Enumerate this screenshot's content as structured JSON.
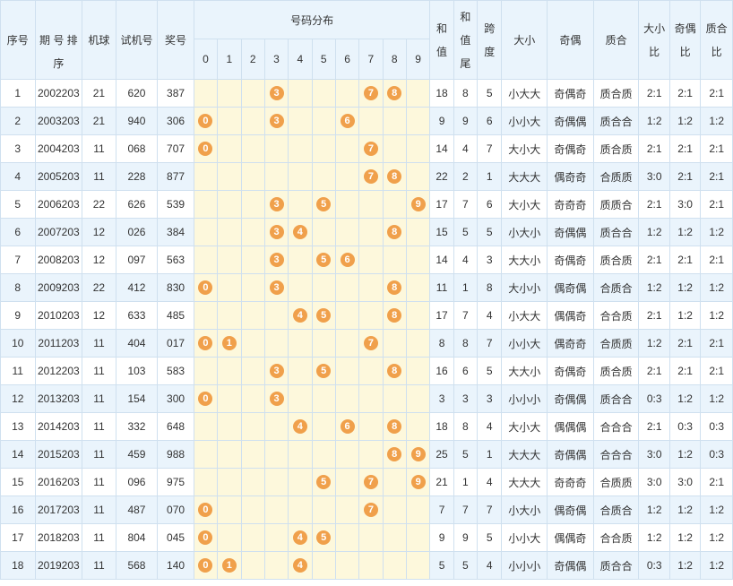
{
  "headers": {
    "seq": "序号",
    "issue_top": "期",
    "issue_bottom": "号",
    "sort": "排序",
    "machine": "机球",
    "test": "试机号",
    "prize": "奖号",
    "distribution": "号码分布",
    "digits": [
      "0",
      "1",
      "2",
      "3",
      "4",
      "5",
      "6",
      "7",
      "8",
      "9"
    ],
    "sum": "和值",
    "sum_tail": "和值尾",
    "span": "跨度",
    "size": "大小",
    "parity": "奇偶",
    "prime": "质合",
    "size_ratio": "大小比",
    "parity_ratio": "奇偶比",
    "prime_ratio": "质合比"
  },
  "rows": [
    {
      "seq": "1",
      "issue": "2002203",
      "machine": "21",
      "test": "620",
      "prize": "387",
      "balls": [
        3,
        7,
        8
      ],
      "sum": "18",
      "tail": "8",
      "span": "5",
      "size": "小大大",
      "parity": "奇偶奇",
      "prime": "质合质",
      "sr": "2:1",
      "pr": "2:1",
      "qr": "2:1"
    },
    {
      "seq": "2",
      "issue": "2003203",
      "machine": "21",
      "test": "940",
      "prize": "306",
      "balls": [
        0,
        3,
        6
      ],
      "sum": "9",
      "tail": "9",
      "span": "6",
      "size": "小小大",
      "parity": "奇偶偶",
      "prime": "质合合",
      "sr": "1:2",
      "pr": "1:2",
      "qr": "1:2"
    },
    {
      "seq": "3",
      "issue": "2004203",
      "machine": "11",
      "test": "068",
      "prize": "707",
      "balls": [
        0,
        7
      ],
      "sum": "14",
      "tail": "4",
      "span": "7",
      "size": "大小大",
      "parity": "奇偶奇",
      "prime": "质合质",
      "sr": "2:1",
      "pr": "2:1",
      "qr": "2:1"
    },
    {
      "seq": "4",
      "issue": "2005203",
      "machine": "11",
      "test": "228",
      "prize": "877",
      "balls": [
        7,
        8
      ],
      "sum": "22",
      "tail": "2",
      "span": "1",
      "size": "大大大",
      "parity": "偶奇奇",
      "prime": "合质质",
      "sr": "3:0",
      "pr": "2:1",
      "qr": "2:1"
    },
    {
      "seq": "5",
      "issue": "2006203",
      "machine": "22",
      "test": "626",
      "prize": "539",
      "balls": [
        3,
        5,
        9
      ],
      "sum": "17",
      "tail": "7",
      "span": "6",
      "size": "大小大",
      "parity": "奇奇奇",
      "prime": "质质合",
      "sr": "2:1",
      "pr": "3:0",
      "qr": "2:1"
    },
    {
      "seq": "6",
      "issue": "2007203",
      "machine": "12",
      "test": "026",
      "prize": "384",
      "balls": [
        3,
        4,
        8
      ],
      "sum": "15",
      "tail": "5",
      "span": "5",
      "size": "小大小",
      "parity": "奇偶偶",
      "prime": "质合合",
      "sr": "1:2",
      "pr": "1:2",
      "qr": "1:2"
    },
    {
      "seq": "7",
      "issue": "2008203",
      "machine": "12",
      "test": "097",
      "prize": "563",
      "balls": [
        3,
        5,
        6
      ],
      "sum": "14",
      "tail": "4",
      "span": "3",
      "size": "大大小",
      "parity": "奇偶奇",
      "prime": "质合质",
      "sr": "2:1",
      "pr": "2:1",
      "qr": "2:1"
    },
    {
      "seq": "8",
      "issue": "2009203",
      "machine": "22",
      "test": "412",
      "prize": "830",
      "balls": [
        0,
        3,
        8
      ],
      "sum": "11",
      "tail": "1",
      "span": "8",
      "size": "大小小",
      "parity": "偶奇偶",
      "prime": "合质合",
      "sr": "1:2",
      "pr": "1:2",
      "qr": "1:2"
    },
    {
      "seq": "9",
      "issue": "2010203",
      "machine": "12",
      "test": "633",
      "prize": "485",
      "balls": [
        4,
        5,
        8
      ],
      "sum": "17",
      "tail": "7",
      "span": "4",
      "size": "小大大",
      "parity": "偶偶奇",
      "prime": "合合质",
      "sr": "2:1",
      "pr": "1:2",
      "qr": "1:2"
    },
    {
      "seq": "10",
      "issue": "2011203",
      "machine": "11",
      "test": "404",
      "prize": "017",
      "balls": [
        0,
        1,
        7
      ],
      "sum": "8",
      "tail": "8",
      "span": "7",
      "size": "小小大",
      "parity": "偶奇奇",
      "prime": "合质质",
      "sr": "1:2",
      "pr": "2:1",
      "qr": "2:1"
    },
    {
      "seq": "11",
      "issue": "2012203",
      "machine": "11",
      "test": "103",
      "prize": "583",
      "balls": [
        3,
        5,
        8
      ],
      "sum": "16",
      "tail": "6",
      "span": "5",
      "size": "大大小",
      "parity": "奇偶奇",
      "prime": "质合质",
      "sr": "2:1",
      "pr": "2:1",
      "qr": "2:1"
    },
    {
      "seq": "12",
      "issue": "2013203",
      "machine": "11",
      "test": "154",
      "prize": "300",
      "balls": [
        0,
        3
      ],
      "sum": "3",
      "tail": "3",
      "span": "3",
      "size": "小小小",
      "parity": "奇偶偶",
      "prime": "质合合",
      "sr": "0:3",
      "pr": "1:2",
      "qr": "1:2"
    },
    {
      "seq": "13",
      "issue": "2014203",
      "machine": "11",
      "test": "332",
      "prize": "648",
      "balls": [
        4,
        6,
        8
      ],
      "sum": "18",
      "tail": "8",
      "span": "4",
      "size": "大小大",
      "parity": "偶偶偶",
      "prime": "合合合",
      "sr": "2:1",
      "pr": "0:3",
      "qr": "0:3"
    },
    {
      "seq": "14",
      "issue": "2015203",
      "machine": "11",
      "test": "459",
      "prize": "988",
      "balls": [
        8,
        9
      ],
      "sum": "25",
      "tail": "5",
      "span": "1",
      "size": "大大大",
      "parity": "奇偶偶",
      "prime": "合合合",
      "sr": "3:0",
      "pr": "1:2",
      "qr": "0:3"
    },
    {
      "seq": "15",
      "issue": "2016203",
      "machine": "11",
      "test": "096",
      "prize": "975",
      "balls": [
        5,
        7,
        9
      ],
      "sum": "21",
      "tail": "1",
      "span": "4",
      "size": "大大大",
      "parity": "奇奇奇",
      "prime": "合质质",
      "sr": "3:0",
      "pr": "3:0",
      "qr": "2:1"
    },
    {
      "seq": "16",
      "issue": "2017203",
      "machine": "11",
      "test": "487",
      "prize": "070",
      "balls": [
        0,
        7
      ],
      "sum": "7",
      "tail": "7",
      "span": "7",
      "size": "小大小",
      "parity": "偶奇偶",
      "prime": "合质合",
      "sr": "1:2",
      "pr": "1:2",
      "qr": "1:2"
    },
    {
      "seq": "17",
      "issue": "2018203",
      "machine": "11",
      "test": "804",
      "prize": "045",
      "balls": [
        0,
        4,
        5
      ],
      "sum": "9",
      "tail": "9",
      "span": "5",
      "size": "小小大",
      "parity": "偶偶奇",
      "prime": "合合质",
      "sr": "1:2",
      "pr": "1:2",
      "qr": "1:2"
    },
    {
      "seq": "18",
      "issue": "2019203",
      "machine": "11",
      "test": "568",
      "prize": "140",
      "balls": [
        0,
        1,
        4
      ],
      "sum": "5",
      "tail": "5",
      "span": "4",
      "size": "小小小",
      "parity": "奇偶偶",
      "prime": "质合合",
      "sr": "0:3",
      "pr": "1:2",
      "qr": "1:2"
    }
  ]
}
